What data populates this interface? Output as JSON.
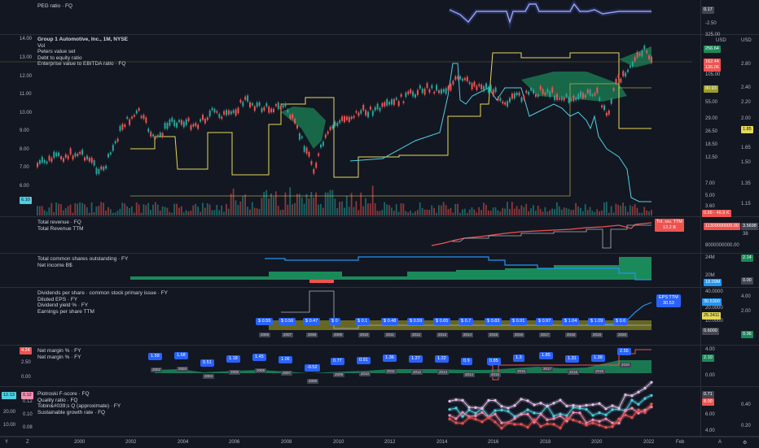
{
  "peg_pane": {
    "legend": "PEG ratio · FQ",
    "value_tag": "0.17",
    "axis": [
      "-2.50"
    ]
  },
  "main_pane": {
    "legend": [
      "Group 1 Automotive, Inc., 1M, NYSE",
      "Vol",
      "Peters value set",
      "Debt to equity ratio",
      "Enterprise value to EBITDA ratio · FQ"
    ],
    "left_axis": [
      "14.00",
      "13.00",
      "12.00",
      "11.00",
      "10.00",
      "9.00",
      "8.00",
      "7.00",
      "6.00"
    ],
    "right_axis_usd": [
      "325.00",
      "USD",
      "105.00",
      "55.00",
      "29.00",
      "18.50",
      "12.50",
      "7.00",
      "5.00",
      "3.60"
    ],
    "right_axis_2": [
      "USD",
      "2.80",
      "2.40",
      "2.20",
      "2.00",
      "1.85",
      "1.65",
      "1.50",
      "1.35",
      "1.15"
    ],
    "tags": {
      "t1": "256.64",
      "t2": "162.44",
      "t3": "135.06",
      "t4": "80.93",
      "t5": "26.50",
      "t6": "1.85",
      "t7": "6.10",
      "t8": "0.86 · 46.9 K"
    }
  },
  "revenue_pane": {
    "legend": [
      "Total revenue · FQ",
      "Total Revenue TTM"
    ],
    "right_axis": [
      "38",
      "8000000000.00"
    ],
    "tags": {
      "big": "11309000000.00",
      "small": "3.5698"
    },
    "ttm_badge": [
      "Tot. rev. TTM",
      "13.2 B"
    ]
  },
  "shares_pane": {
    "legend": [
      "Total common shares outstanding · FY",
      "Net income B$"
    ],
    "right_axis": [
      "24M",
      "20M"
    ],
    "tags": {
      "t1": "2.14",
      "t2": "0.00",
      "t3": "18.09M",
      "t4": "0.00"
    }
  },
  "dividends_pane": {
    "legend": [
      "Dividends per share · common stock primary issue · FY",
      "Diluted EPS · FY",
      "Dividend yield % · FY",
      "Earnings per share TTM"
    ],
    "right_axis": [
      "40.0000",
      "4.00",
      "30.0000",
      "20.0000",
      "2.00",
      "10.0000"
    ],
    "tags": {
      "t1": "30.5300",
      "t2": "25.3411",
      "t3": "0.6000",
      "t4": "0.36"
    },
    "bubbles": [
      "$ 0.55",
      "$ 0.56",
      "$ 0.47",
      "$ 0",
      "$ 0.1",
      "$ 0.48",
      "$ 0.59",
      "$ 0.65",
      "$ 0.7",
      "$ 0.83",
      "$ 0.91",
      "$ 0.97",
      "$ 1.04",
      "$ 1.09",
      "$ 0.6"
    ],
    "years": [
      "2006",
      "2007",
      "2008",
      "2009",
      "2010",
      "2011",
      "2012",
      "2013",
      "2014",
      "2015",
      "2016",
      "2017",
      "2018",
      "2019",
      "2020"
    ],
    "eps_badge": [
      "EPS TTM",
      "30.53"
    ]
  },
  "margin_pane": {
    "legend": [
      "Net margin % · FY",
      "Net margin % · FY"
    ],
    "left_axis": [
      "2.50",
      "0.00"
    ],
    "left_tag": "4.24",
    "right_axis": [
      "4.00",
      "0.00"
    ],
    "right_tag": "2.10",
    "bubbles": [
      "1.59",
      "1.68",
      "0.51",
      "1.18",
      "1.45",
      "1.06",
      "-0.52",
      "0.77",
      "0.91",
      "1.36",
      "1.27",
      "1.22",
      "0.9",
      "0.85",
      "1.3",
      "1.85",
      "1.31",
      "1.39",
      "2.55"
    ],
    "years": [
      "2002",
      "2003",
      "2004",
      "2005",
      "2006",
      "2007",
      "2008",
      "2009",
      "2010",
      "2011",
      "2012",
      "2013",
      "2014",
      "2015",
      "2016",
      "2017",
      "2018",
      "2019",
      "2020"
    ]
  },
  "scores_pane": {
    "legend": [
      "Piotroski F-score · FQ",
      "Quality ratio · FQ",
      "Tobin&#039;s Q (approximate) · FY",
      "Sustainable growth rate · FQ"
    ],
    "left_axis": [
      "0.12",
      "0.10",
      "0.08"
    ],
    "left_axis_2": [
      "20.00",
      "10.00"
    ],
    "left_tag": "12.13",
    "left_tag2": "0.12",
    "right_axis": [
      "6.00",
      "4.00"
    ],
    "right_axis_2": [
      "0.40",
      "0.20"
    ],
    "right_tag": "0.71",
    "right_tag2": "8.00"
  },
  "x_axis": [
    "2000",
    "2002",
    "2004",
    "2006",
    "2008",
    "2010",
    "2012",
    "2014",
    "2016",
    "2018",
    "2020",
    "2022",
    "Feb"
  ],
  "colors": {
    "bg": "#131722",
    "up": "#26a69a",
    "down": "#ef5350",
    "yellow": "#e5d855",
    "cyan": "#4dd0e1",
    "blue": "#2196f3",
    "green": "#1b8a5a"
  }
}
